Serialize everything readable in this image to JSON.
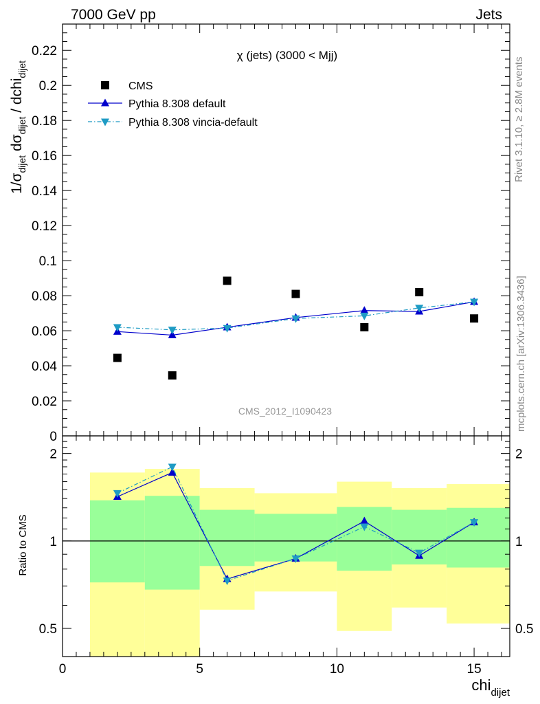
{
  "header": {
    "left": "7000 GeV pp",
    "right": "Jets"
  },
  "side_labels": {
    "rivet": "Rivet 3.1.10, ≥ 2.8M events",
    "mcplots": "mcplots.cern.ch [arXiv:1306.3436]"
  },
  "chart_data": [
    {
      "type": "scatter",
      "title": "χ (jets) (3000 < Mjj)",
      "watermark": "CMS_2012_I1090423",
      "ylabel": "1/σ_dijet dσ_dijet / dchi_dijet",
      "xlim": [
        0,
        16.3
      ],
      "ylim": [
        0,
        0.235
      ],
      "yticks": [
        "0",
        "0.02",
        "0.04",
        "0.06",
        "0.08",
        "0.1",
        "0.12",
        "0.14",
        "0.16",
        "0.18",
        "0.2",
        "0.22"
      ],
      "legend_position": "top-left",
      "series": [
        {
          "name": "CMS",
          "color": "#000000",
          "marker": "square",
          "x": [
            2,
            4,
            6,
            8.5,
            11,
            13,
            15
          ],
          "y": [
            0.0445,
            0.0345,
            0.0885,
            0.081,
            0.062,
            0.082,
            0.067
          ]
        },
        {
          "name": "Pythia 8.308 default",
          "color": "#0000cc",
          "marker": "triangle-up",
          "line": "solid",
          "x": [
            2,
            4,
            6,
            8.5,
            11,
            13,
            15
          ],
          "y": [
            0.0595,
            0.0575,
            0.062,
            0.0675,
            0.0715,
            0.071,
            0.0765
          ]
        },
        {
          "name": "Pythia 8.308 vincia-default",
          "color": "#1e9bc4",
          "marker": "triangle-down",
          "line": "dash-dot",
          "x": [
            2,
            4,
            6,
            8.5,
            11,
            13,
            15
          ],
          "y": [
            0.062,
            0.0605,
            0.0615,
            0.067,
            0.0685,
            0.073,
            0.0765
          ]
        }
      ]
    },
    {
      "type": "area",
      "ylabel": "Ratio to CMS",
      "xlabel": "chi_dijet",
      "xlim": [
        0,
        16.3
      ],
      "ylim": [
        0.4,
        2.3
      ],
      "xticks": [
        "0",
        "5",
        "10",
        "15"
      ],
      "yticks": [
        "0.5",
        "1",
        "2"
      ],
      "bands": {
        "bins": [
          [
            1,
            3
          ],
          [
            3,
            5
          ],
          [
            5,
            7
          ],
          [
            7,
            10
          ],
          [
            10,
            12
          ],
          [
            12,
            14
          ],
          [
            14,
            16.3
          ]
        ],
        "outer_color": "#ffff99",
        "inner_color": "#99ff99",
        "outer_lo": [
          0.25,
          0.25,
          0.58,
          0.67,
          0.49,
          0.59,
          0.52
        ],
        "outer_hi": [
          1.72,
          1.77,
          1.52,
          1.46,
          1.6,
          1.52,
          1.57
        ],
        "inner_lo": [
          0.72,
          0.68,
          0.82,
          0.85,
          0.79,
          0.83,
          0.81
        ],
        "inner_hi": [
          1.38,
          1.43,
          1.28,
          1.24,
          1.31,
          1.28,
          1.3
        ]
      },
      "series": [
        {
          "name": "Pythia 8.308 default",
          "color": "#0000cc",
          "marker": "triangle-up",
          "line": "solid",
          "x": [
            2,
            4,
            6,
            8.5,
            11,
            13,
            15
          ],
          "y": [
            1.42,
            1.72,
            0.74,
            0.87,
            1.17,
            0.89,
            1.16
          ]
        },
        {
          "name": "Pythia 8.308 vincia-default",
          "color": "#1e9bc4",
          "marker": "triangle-down",
          "line": "dash-dot",
          "x": [
            2,
            4,
            6,
            8.5,
            11,
            13,
            15
          ],
          "y": [
            1.46,
            1.8,
            0.73,
            0.87,
            1.12,
            0.91,
            1.16
          ]
        }
      ]
    }
  ]
}
